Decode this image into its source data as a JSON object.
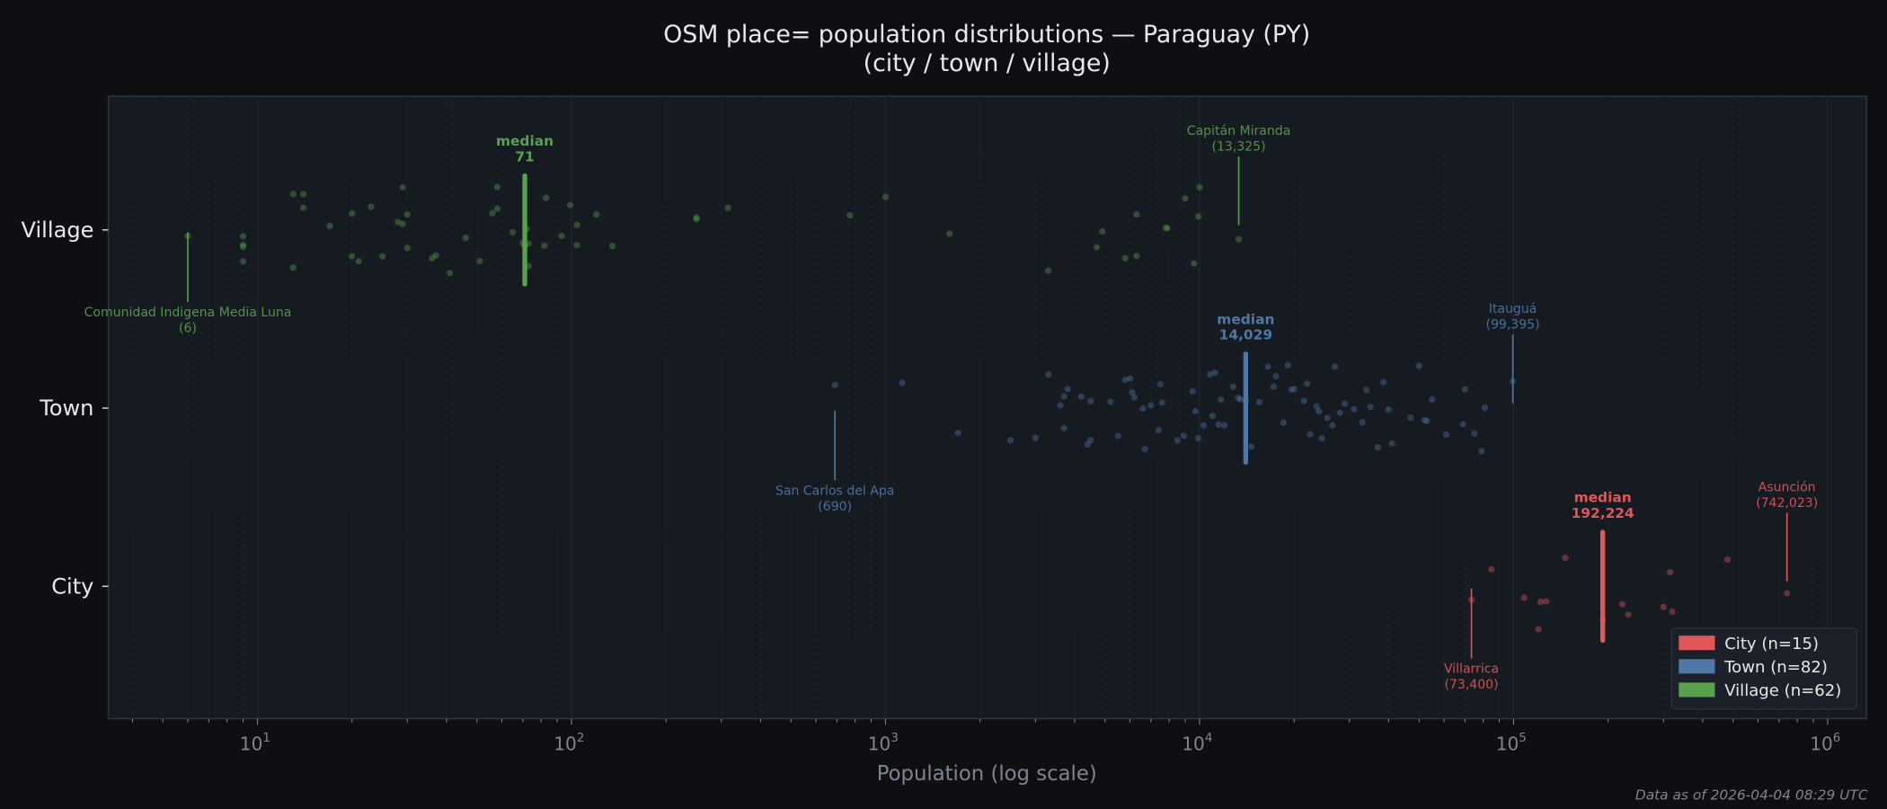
{
  "chart_data": {
    "type": "scatter",
    "title": "OSM place= population distributions — Paraguay (PY)",
    "subtitle": "(city / town / village)",
    "xlabel": "Population (log scale)",
    "ylabel": "",
    "x_scale": "log",
    "xlim": [
      3.35,
      1330000
    ],
    "x_ticks": [
      {
        "value": 10,
        "base": "10",
        "exp": "1"
      },
      {
        "value": 100,
        "base": "10",
        "exp": "2"
      },
      {
        "value": 1000,
        "base": "10",
        "exp": "3"
      },
      {
        "value": 10000,
        "base": "10",
        "exp": "4"
      },
      {
        "value": 100000,
        "base": "10",
        "exp": "5"
      },
      {
        "value": 1000000,
        "base": "10",
        "exp": "6"
      }
    ],
    "categories": [
      "Village",
      "Town",
      "City"
    ],
    "grid": "vertical, major and minor",
    "legend_position": "bottom-right",
    "series": [
      {
        "name": "City",
        "legend": "City  (n=15)",
        "color": "#e15759",
        "median": 192224,
        "values": [
          73400,
          85000,
          108000,
          120000,
          122000,
          127000,
          146000,
          192224,
          222000,
          232000,
          300000,
          315000,
          320000,
          480000,
          742023
        ]
      },
      {
        "name": "Town",
        "legend": "Town  (n=82)",
        "color": "#4e79a7",
        "median": 14029,
        "values": [
          690,
          1130,
          1700,
          2500,
          3000,
          3300,
          3600,
          3700,
          3700,
          3800,
          4200,
          4400,
          4500,
          4500,
          5200,
          5500,
          5800,
          6000,
          6100,
          6200,
          6600,
          6700,
          7000,
          7400,
          7500,
          7600,
          8500,
          8900,
          9500,
          9700,
          9900,
          10300,
          10800,
          11000,
          11200,
          11500,
          11700,
          12000,
          12800,
          13300,
          13500,
          14029,
          14600,
          15500,
          16500,
          17200,
          17500,
          18500,
          19100,
          19600,
          20000,
          21500,
          22000,
          22500,
          23600,
          24000,
          24500,
          25500,
          26500,
          27000,
          28000,
          29000,
          31000,
          33000,
          34000,
          35000,
          37000,
          38500,
          40000,
          41000,
          47000,
          50000,
          52000,
          53000,
          55000,
          61000,
          69000,
          70000,
          75000,
          79000,
          81000,
          99395
        ]
      },
      {
        "name": "Village",
        "legend": "Village  (n=62)",
        "color": "#59a14f",
        "median": 71,
        "values": [
          6,
          9,
          9,
          9,
          9,
          13,
          13,
          14,
          14,
          17,
          20,
          20,
          21,
          23,
          25,
          28,
          29,
          29,
          30,
          30,
          36,
          37,
          41,
          46,
          51,
          56,
          58,
          58,
          65,
          70,
          71,
          71,
          72,
          73,
          73,
          82,
          83,
          93,
          99,
          104,
          104,
          120,
          135,
          250,
          250,
          315,
          770,
          1000,
          1600,
          3300,
          4700,
          4900,
          5800,
          6300,
          6300,
          7800,
          7900,
          9000,
          9600,
          9900,
          10000,
          13325
        ]
      }
    ],
    "annotations": [
      {
        "category": "Village",
        "kind": "median",
        "line1": "median",
        "line2": "71",
        "x": 71
      },
      {
        "category": "Village",
        "kind": "min",
        "line1": "Comunidad Indigena Media Luna",
        "line2": "(6)",
        "x": 6,
        "placement": "below"
      },
      {
        "category": "Village",
        "kind": "max",
        "line1": "Capitán Miranda",
        "line2": "(13,325)",
        "x": 13325,
        "placement": "above"
      },
      {
        "category": "Town",
        "kind": "median",
        "line1": "median",
        "line2": "14,029",
        "x": 14029
      },
      {
        "category": "Town",
        "kind": "min",
        "line1": "San Carlos del Apa",
        "line2": "(690)",
        "x": 690,
        "placement": "below"
      },
      {
        "category": "Town",
        "kind": "max",
        "line1": "Itauguá",
        "line2": "(99,395)",
        "x": 99395,
        "placement": "above"
      },
      {
        "category": "City",
        "kind": "median",
        "line1": "median",
        "line2": "192,224",
        "x": 192224
      },
      {
        "category": "City",
        "kind": "min",
        "line1": "Villarrica",
        "line2": "(73,400)",
        "x": 73400,
        "placement": "below"
      },
      {
        "category": "City",
        "kind": "max",
        "line1": "Asunción",
        "line2": "(742,023)",
        "x": 742023,
        "placement": "above"
      }
    ],
    "footnote": "Data as of 2026-04-04 08:29 UTC"
  }
}
